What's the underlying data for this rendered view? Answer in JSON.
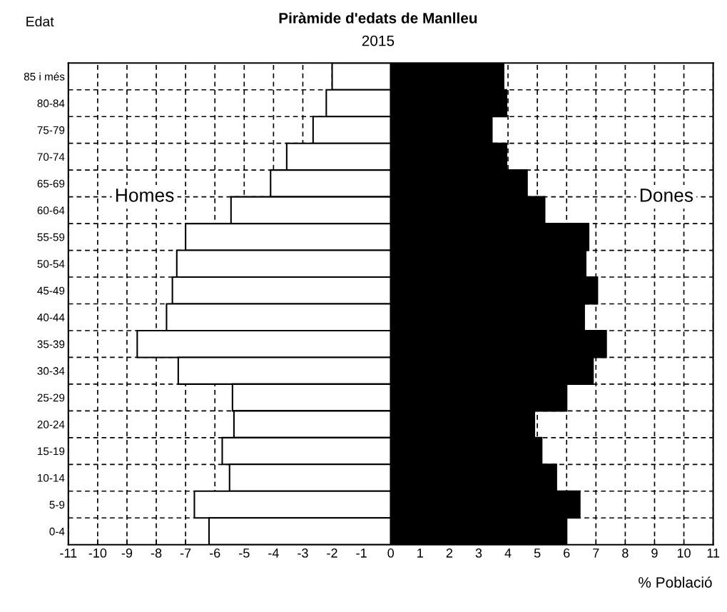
{
  "chart_data": {
    "type": "bar",
    "orientation": "horizontal",
    "title": "Piràmide d'edats de Manlleu",
    "subtitle": "2015",
    "ylabel": "Edat",
    "xlabel": "% Població",
    "categories": [
      "85 i més",
      "80-84",
      "75-79",
      "70-74",
      "65-69",
      "60-64",
      "55-59",
      "50-54",
      "45-49",
      "40-44",
      "35-39",
      "30-34",
      "25-29",
      "20-24",
      "15-19",
      "10-14",
      "5-9",
      "0-4"
    ],
    "series": [
      {
        "name": "Homes",
        "color": "#ffffff",
        "values": [
          -2.0,
          -2.2,
          -2.65,
          -3.55,
          -4.1,
          -5.45,
          -7.0,
          -7.3,
          -7.45,
          -7.65,
          -8.65,
          -7.25,
          -5.4,
          -5.35,
          -5.75,
          -5.5,
          -6.7,
          -6.2
        ]
      },
      {
        "name": "Dones",
        "color": "#000000",
        "values": [
          3.85,
          3.95,
          3.45,
          3.95,
          4.65,
          5.25,
          6.75,
          6.65,
          7.05,
          6.6,
          7.35,
          6.9,
          6.0,
          4.9,
          5.15,
          5.65,
          6.45,
          6.0
        ]
      }
    ],
    "xlim": [
      -11,
      11
    ],
    "xticks": [
      -11,
      -10,
      -9,
      -8,
      -7,
      -6,
      -5,
      -4,
      -3,
      -2,
      -1,
      0,
      1,
      2,
      3,
      4,
      5,
      6,
      7,
      8,
      9,
      10,
      11
    ],
    "stacked": true,
    "grid": true,
    "legend": false
  }
}
